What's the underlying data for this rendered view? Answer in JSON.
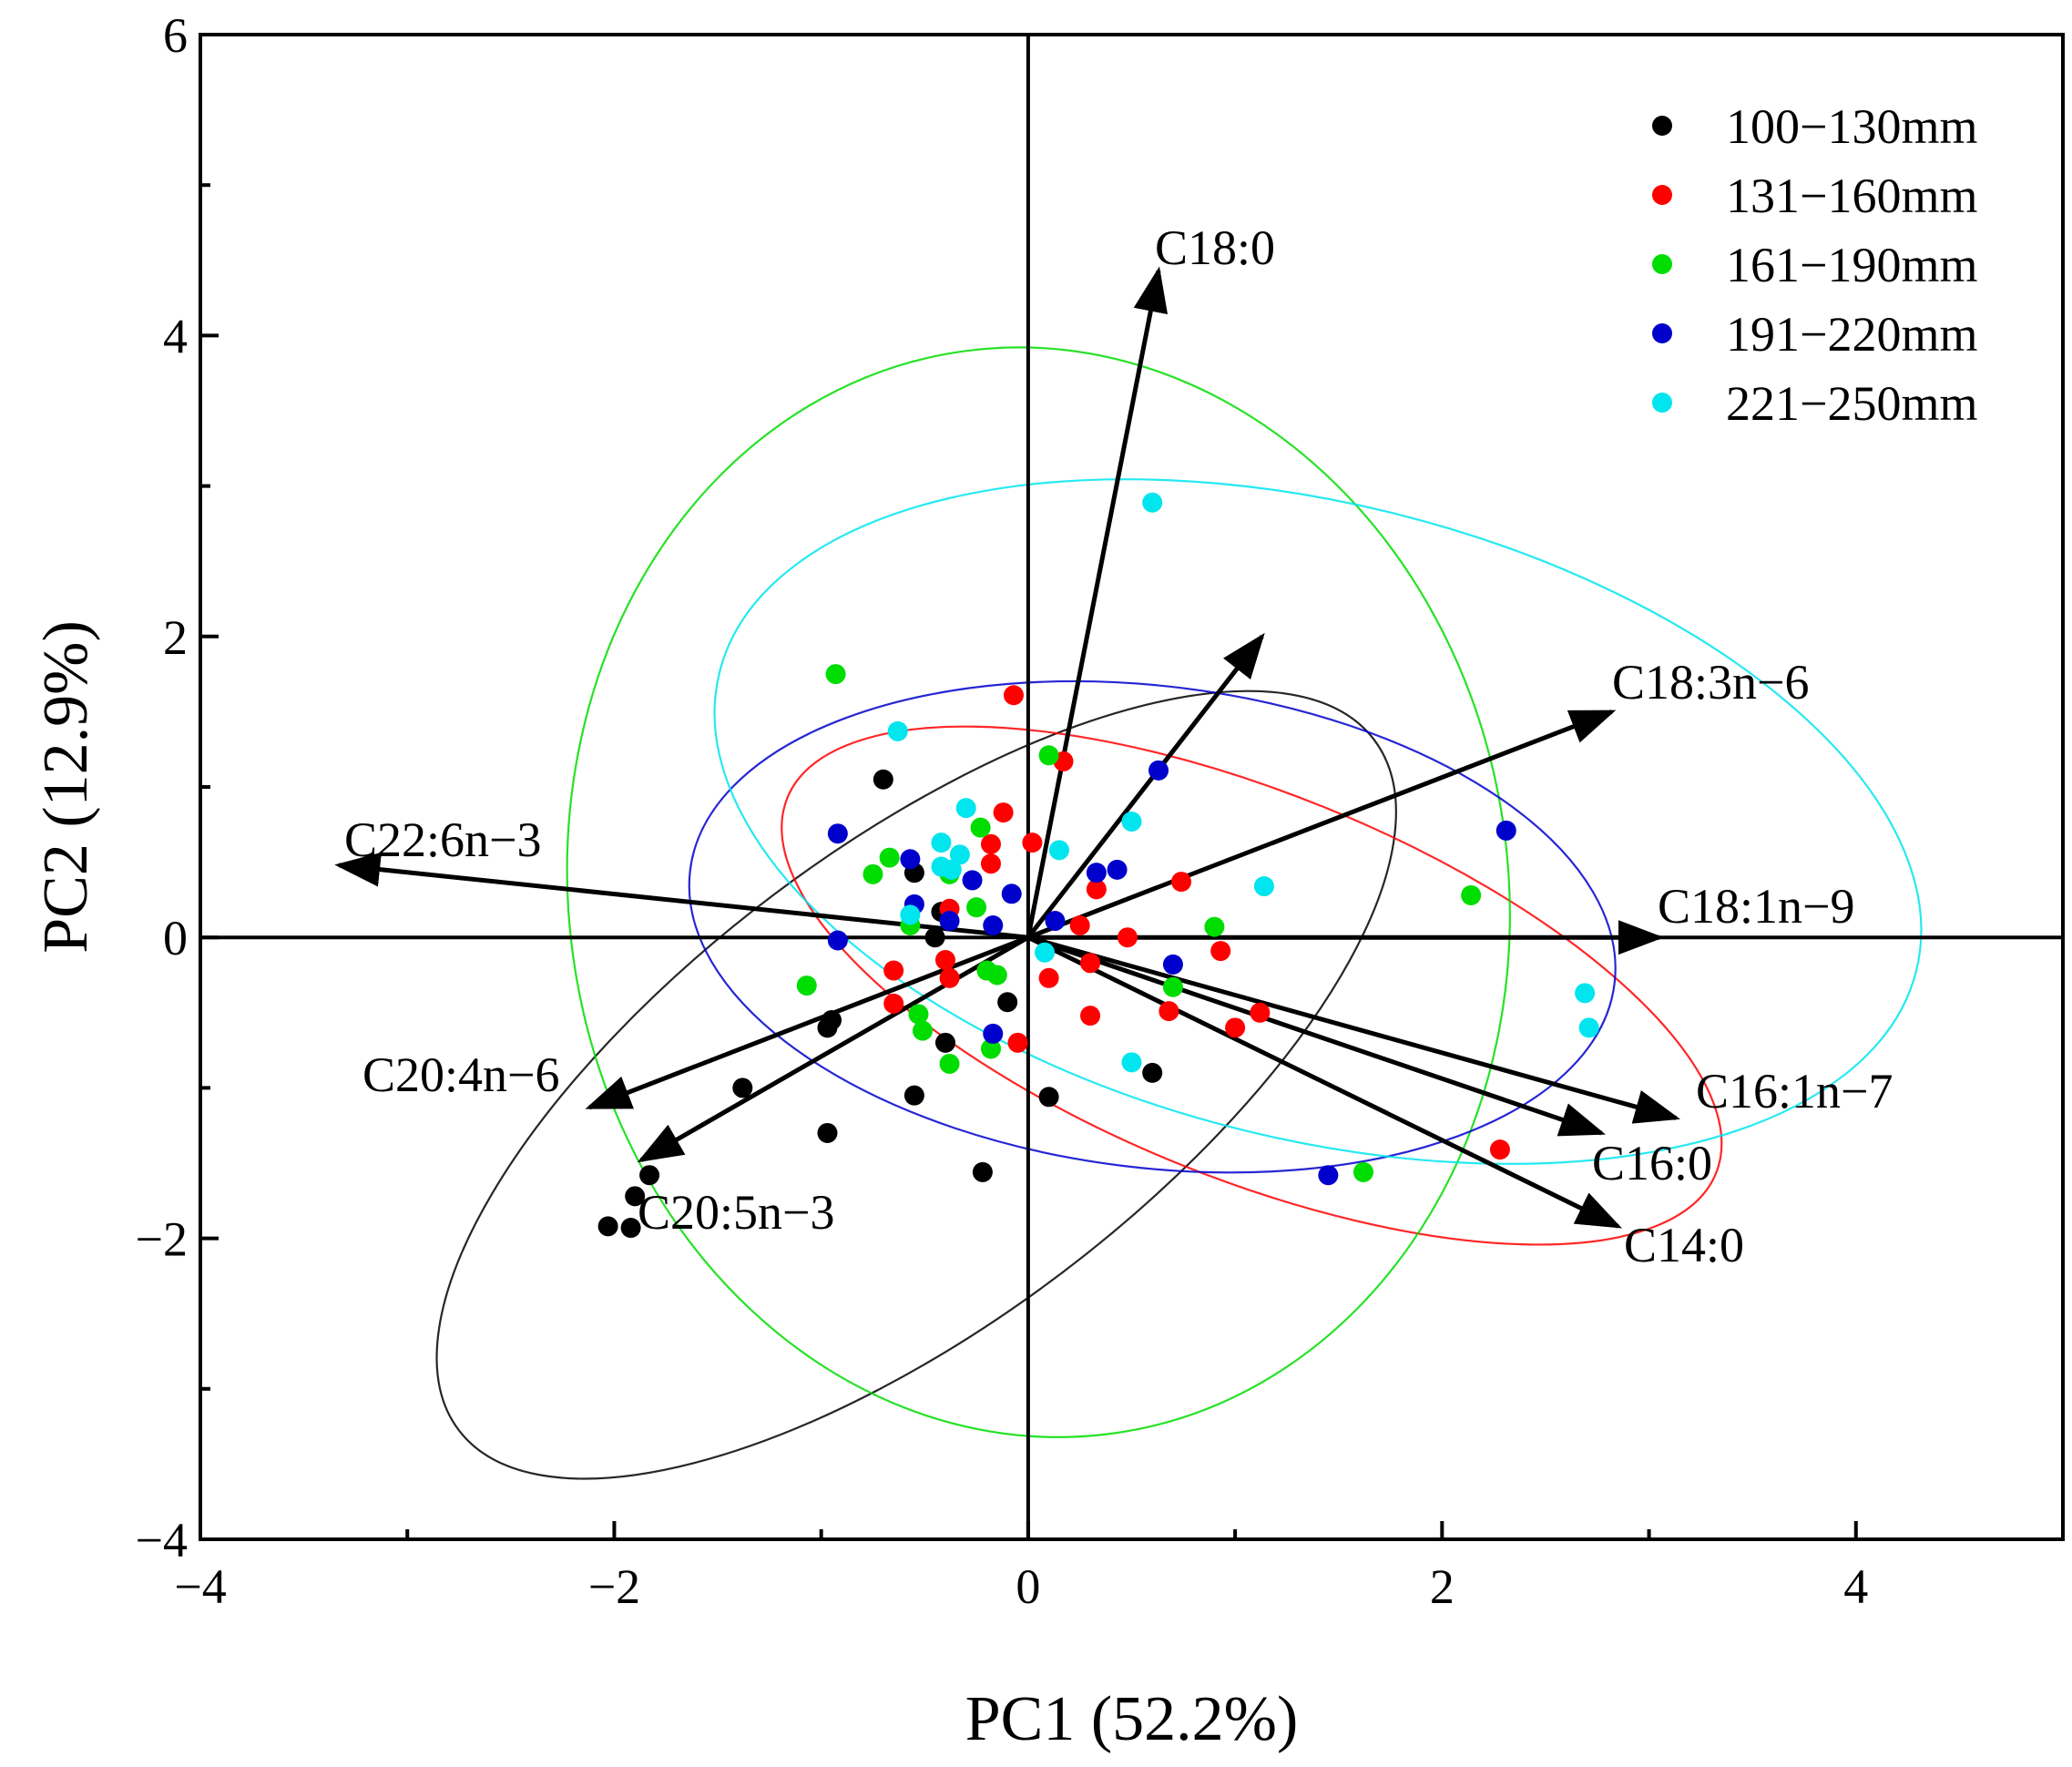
{
  "chart_data": {
    "type": "scatter",
    "subtype": "pca-biplot",
    "xlabel": "PC1 (52.2%)",
    "ylabel": "PC2 (12.9%)",
    "xlim": [
      -4,
      5
    ],
    "ylim": [
      -4,
      6
    ],
    "xticks": [
      -4,
      -2,
      0,
      2,
      4
    ],
    "yticks": [
      -4,
      -2,
      0,
      2,
      4,
      6
    ],
    "legend_position": "top-right",
    "groups": [
      {
        "name": "100−130mm",
        "color": "#000000",
        "points": [
          [
            -0.7,
            1.05
          ],
          [
            -0.55,
            0.43
          ],
          [
            -0.42,
            0.17
          ],
          [
            -0.45,
            0
          ],
          [
            -0.4,
            -0.7
          ],
          [
            -0.1,
            -0.43
          ],
          [
            -0.95,
            -0.55
          ],
          [
            -0.97,
            -0.6
          ],
          [
            -1.38,
            -1.0
          ],
          [
            -0.55,
            -1.05
          ],
          [
            -0.97,
            -1.3
          ],
          [
            -0.22,
            -1.56
          ],
          [
            0.1,
            -1.06
          ],
          [
            0.6,
            -0.9
          ],
          [
            -1.83,
            -1.58
          ],
          [
            -1.9,
            -1.72
          ],
          [
            -1.92,
            -1.93
          ],
          [
            -2.03,
            -1.92
          ]
        ],
        "ellipse": {
          "cx": -0.54,
          "cy": -0.98,
          "rx": 2.77,
          "ry": 1.58,
          "angle_deg": 37
        }
      },
      {
        "name": "131−160mm",
        "color": "#ff0000",
        "points": [
          [
            -0.07,
            1.61
          ],
          [
            0.17,
            1.17
          ],
          [
            -0.12,
            0.83
          ],
          [
            0.02,
            0.63
          ],
          [
            -0.18,
            0.62
          ],
          [
            -0.18,
            0.49
          ],
          [
            -0.38,
            0.19
          ],
          [
            -0.4,
            -0.15
          ],
          [
            -0.38,
            -0.27
          ],
          [
            -0.65,
            -0.22
          ],
          [
            -0.65,
            -0.44
          ],
          [
            -0.05,
            -0.7
          ],
          [
            0.25,
            0.08
          ],
          [
            0.33,
            0.32
          ],
          [
            0.74,
            0.37
          ],
          [
            0.48,
            0
          ],
          [
            0.3,
            -0.17
          ],
          [
            0.1,
            -0.27
          ],
          [
            0.3,
            -0.52
          ],
          [
            0.68,
            -0.49
          ],
          [
            0.93,
            -0.09
          ],
          [
            1.0,
            -0.6
          ],
          [
            1.12,
            -0.5
          ],
          [
            2.28,
            -1.41
          ]
        ],
        "ellipse": {
          "cx": 1.08,
          "cy": -0.32,
          "rx": 2.42,
          "ry": 1.28,
          "angle_deg": -22
        }
      },
      {
        "name": "161−190mm",
        "color": "#00dd00",
        "points": [
          [
            -0.93,
            1.75
          ],
          [
            -0.67,
            0.53
          ],
          [
            -0.75,
            0.42
          ],
          [
            -0.38,
            0.42
          ],
          [
            -0.23,
            0.73
          ],
          [
            -0.25,
            0.2
          ],
          [
            0.1,
            1.21
          ],
          [
            -0.57,
            0.08
          ],
          [
            -0.2,
            -0.22
          ],
          [
            -0.15,
            -0.25
          ],
          [
            -0.53,
            -0.51
          ],
          [
            -0.51,
            -0.62
          ],
          [
            -0.38,
            -0.84
          ],
          [
            -0.18,
            -0.74
          ],
          [
            -1.07,
            -0.32
          ],
          [
            0.7,
            -0.33
          ],
          [
            0.9,
            0.07
          ],
          [
            2.14,
            0.28
          ],
          [
            1.62,
            -1.56
          ]
        ],
        "ellipse": {
          "cx": 0.05,
          "cy": 0.3,
          "rx": 2.27,
          "ry": 3.63,
          "angle_deg": 8
        }
      },
      {
        "name": "191−220mm",
        "color": "#0000cc",
        "points": [
          [
            -0.92,
            0.69
          ],
          [
            -0.57,
            0.52
          ],
          [
            -0.55,
            0.22
          ],
          [
            -0.38,
            0.11
          ],
          [
            -0.17,
            0.08
          ],
          [
            -0.27,
            0.38
          ],
          [
            -0.08,
            0.29
          ],
          [
            -0.92,
            -0.02
          ],
          [
            -0.17,
            -0.64
          ],
          [
            0.13,
            0.11
          ],
          [
            0.33,
            0.43
          ],
          [
            0.43,
            0.45
          ],
          [
            0.63,
            1.11
          ],
          [
            0.7,
            -0.18
          ],
          [
            2.31,
            0.71
          ],
          [
            1.45,
            -1.58
          ]
        ],
        "ellipse": {
          "cx": 0.6,
          "cy": 0.07,
          "rx": 2.25,
          "ry": 1.6,
          "angle_deg": -7
        }
      },
      {
        "name": "221−250mm",
        "color": "#00e5ee",
        "points": [
          [
            0.6,
            2.89
          ],
          [
            -0.63,
            1.37
          ],
          [
            -0.3,
            0.86
          ],
          [
            -0.42,
            0.63
          ],
          [
            -0.33,
            0.55
          ],
          [
            -0.42,
            0.47
          ],
          [
            -0.37,
            0.45
          ],
          [
            -0.57,
            0.15
          ],
          [
            0.15,
            0.58
          ],
          [
            0.5,
            0.77
          ],
          [
            1.14,
            0.34
          ],
          [
            0.08,
            -0.1
          ],
          [
            0.5,
            -0.83
          ],
          [
            2.69,
            -0.37
          ],
          [
            2.71,
            -0.6
          ]
        ],
        "ellipse": {
          "cx": 1.4,
          "cy": 0.77,
          "rx": 2.98,
          "ry": 2.11,
          "angle_deg": -14
        }
      }
    ],
    "loadings": [
      {
        "label": "C18:0",
        "end": [
          0.63,
          4.43
        ]
      },
      {
        "label": "",
        "end": [
          1.13,
          2.0
        ]
      },
      {
        "label": "C18:3n−6",
        "end": [
          2.82,
          1.5
        ]
      },
      {
        "label": "C22:6n−3",
        "end": [
          -3.33,
          0.48
        ]
      },
      {
        "label": "C18:1n−9",
        "end": [
          3.05,
          0
        ]
      },
      {
        "label": "C16:1n−7",
        "end": [
          3.13,
          -1.2
        ]
      },
      {
        "label": "C16:0",
        "end": [
          2.77,
          -1.3
        ]
      },
      {
        "label": "C14:0",
        "end": [
          2.85,
          -1.92
        ]
      },
      {
        "label": "C20:4n−6",
        "end": [
          -2.12,
          -1.13
        ]
      },
      {
        "label": "C20:5n−3",
        "end": [
          -1.87,
          -1.48
        ]
      }
    ]
  }
}
